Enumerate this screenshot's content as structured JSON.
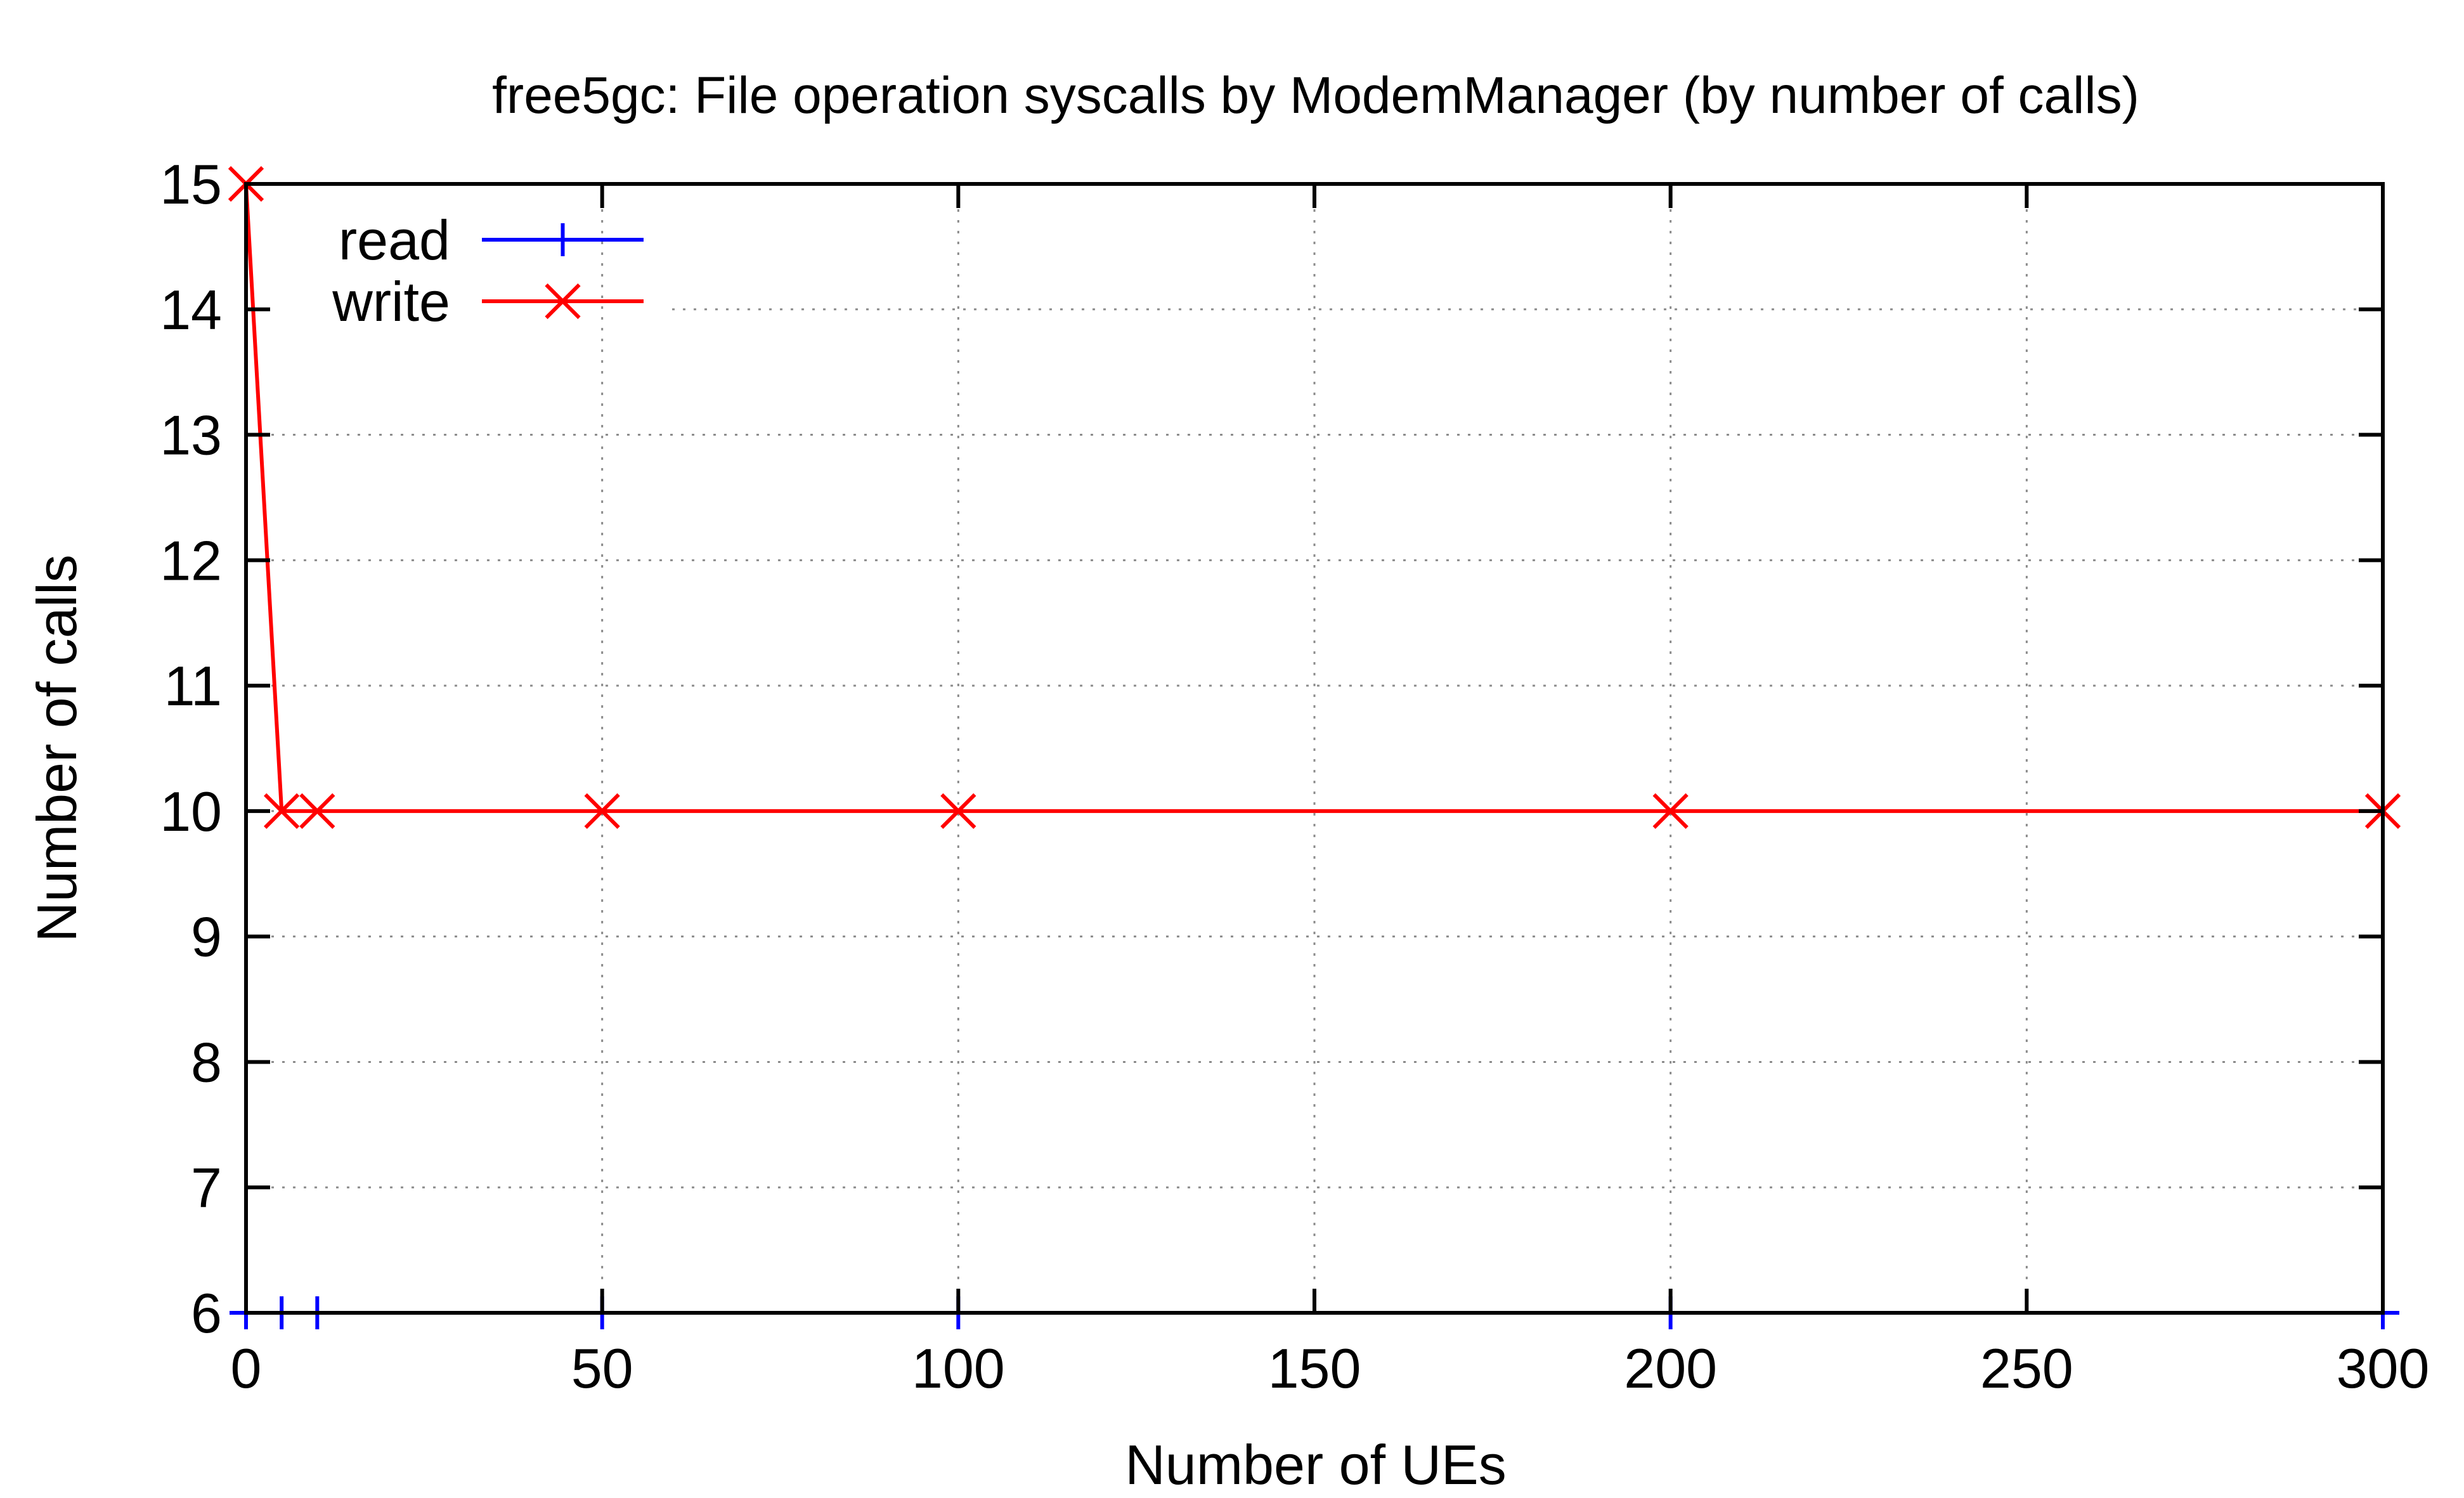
{
  "chart_data": {
    "type": "line",
    "title": "free5gc: File operation syscalls by ModemManager (by number of calls)",
    "xlabel": "Number of UEs",
    "ylabel": "Number of calls",
    "xlim": [
      0,
      300
    ],
    "ylim": [
      6,
      15
    ],
    "x_ticks": [
      0,
      50,
      100,
      150,
      200,
      250,
      300
    ],
    "y_ticks": [
      6,
      7,
      8,
      9,
      10,
      11,
      12,
      13,
      14,
      15
    ],
    "grid": true,
    "legend_position": "top-left",
    "series": [
      {
        "name": "read",
        "color": "#0000ff",
        "marker": "plus",
        "x": [
          0,
          5,
          10,
          50,
          100,
          200,
          300
        ],
        "y": [
          6,
          6,
          6,
          6,
          6,
          6,
          6
        ]
      },
      {
        "name": "write",
        "color": "#ff0000",
        "marker": "cross",
        "x": [
          0,
          5,
          10,
          50,
          100,
          200,
          300
        ],
        "y": [
          15,
          10,
          10,
          10,
          10,
          10,
          10
        ]
      }
    ]
  }
}
